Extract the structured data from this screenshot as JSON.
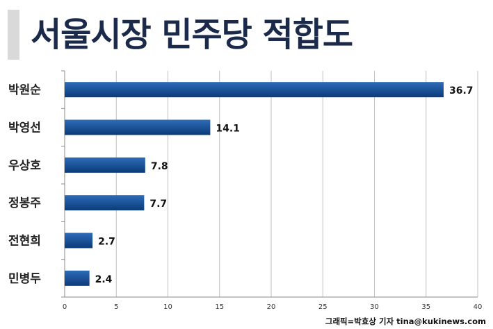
{
  "title": "서울시장 민주당 적합도",
  "credit": "그래픽=박효상 기자 tina@kukinews.com",
  "colors": {
    "bar_top": "#2e6cb8",
    "bar_bottom": "#0b3a78",
    "title": "#1b2a4a",
    "grid": "#bfbfbf",
    "axis": "#888888",
    "label": "#222222",
    "value": "#111111"
  },
  "chart_data": {
    "type": "bar",
    "orientation": "horizontal",
    "title": "서울시장 민주당 적합도",
    "categories": [
      "박원순",
      "박영선",
      "우상호",
      "정봉주",
      "전현희",
      "민병두"
    ],
    "values": [
      36.7,
      14.1,
      7.8,
      7.7,
      2.7,
      2.4
    ],
    "value_labels": [
      "36.7",
      "14.1",
      "7.8",
      "7.7",
      "2.7",
      "2.4"
    ],
    "xlim": [
      0,
      40
    ],
    "xticks": [
      0,
      5,
      10,
      15,
      20,
      25,
      30,
      35,
      40
    ],
    "grid": true,
    "legend": "none"
  }
}
